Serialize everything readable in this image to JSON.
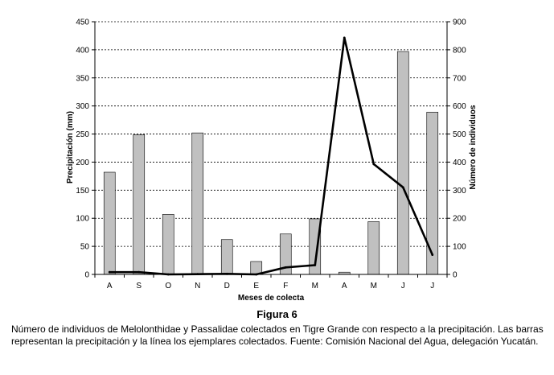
{
  "chart_data": {
    "type": "bar+line",
    "categories": [
      "A",
      "S",
      "O",
      "N",
      "D",
      "E",
      "F",
      "M",
      "A",
      "M",
      "J",
      "J"
    ],
    "series": [
      {
        "name": "Precipitación (mm)",
        "type": "bar",
        "axis": "left",
        "values": [
          182,
          249,
          107,
          252,
          62,
          23,
          72,
          99,
          4,
          94,
          397,
          289
        ]
      },
      {
        "name": "Número de individuos",
        "type": "line",
        "axis": "right",
        "values": [
          8,
          8,
          0,
          1,
          2,
          0,
          25,
          33,
          843,
          393,
          310,
          70
        ]
      }
    ],
    "xlabel": "Meses de colecta",
    "ylabel": "Precipitación (mm)",
    "y2label": "Número de individuos",
    "ylim": [
      0,
      450
    ],
    "y2lim": [
      0,
      900
    ],
    "yticks": [
      0,
      50,
      100,
      150,
      200,
      250,
      300,
      350,
      400,
      450
    ],
    "y2ticks": [
      0,
      100,
      200,
      300,
      400,
      500,
      600,
      700,
      800,
      900
    ],
    "grid": true,
    "colors": {
      "bar_fill": "#c0c0c0",
      "bar_stroke": "#000000",
      "line": "#000000",
      "grid": "#000000"
    }
  },
  "caption": {
    "title": "Figura 6",
    "text": "Número de individuos de Melolonthidae y Passalidae colectados en Tigre Grande con respecto a la precipitación. Las barras representan la precipitación y la línea los ejemplares colectados. Fuente: Comisión Nacional del Agua, delegación Yucatán."
  }
}
